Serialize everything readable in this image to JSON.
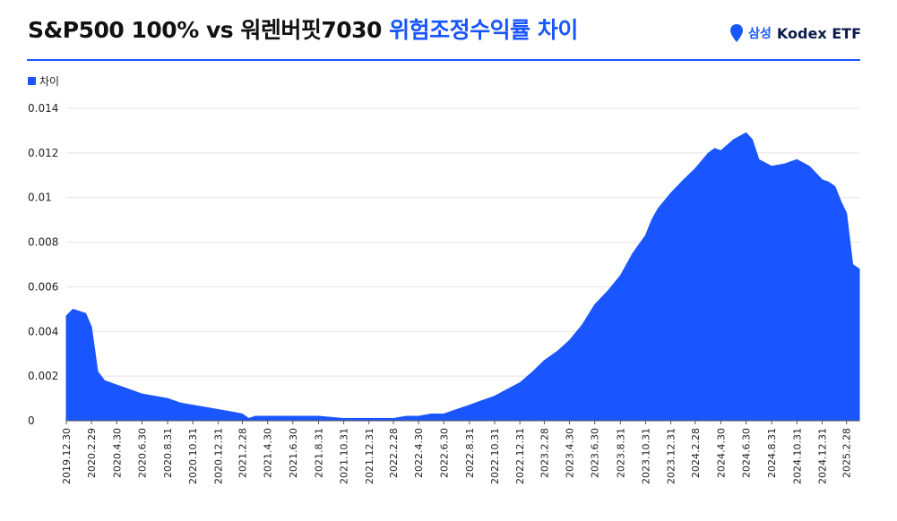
{
  "header": {
    "title_main": "S&P500 100% vs 워렌버핏7030",
    "title_accent": "위험조정수익률 차이",
    "brand_samsung": "삼성",
    "brand_name": "Kodex ETF"
  },
  "colors": {
    "accent": "#1a56ff",
    "grid": "#e3e3e3"
  },
  "icons": {
    "brand_mark": "location-pin-icon"
  },
  "chart_data": {
    "type": "area",
    "legend": [
      "차이"
    ],
    "legend_position": "top-left",
    "grid": true,
    "ylim": [
      0,
      0.014
    ],
    "yticks": [
      "0",
      "0.002",
      "0.004",
      "0.006",
      "0.008",
      "0.01",
      "0.012",
      "0.014"
    ],
    "xticks": [
      "2019.12.30",
      "2020.2.29",
      "2020.4.30",
      "2020.6.30",
      "2020.8.31",
      "2020.10.31",
      "2020.12.31",
      "2021.2.28",
      "2021.4.30",
      "2021.6.30",
      "2021.8.31",
      "2021.10.31",
      "2021.12.31",
      "2022.2.28",
      "2022.4.30",
      "2022.6.30",
      "2022.8.31",
      "2022.10.31",
      "2022.12.31",
      "2023.2.28",
      "2023.4.30",
      "2023.6.30",
      "2023.8.31",
      "2023.10.31",
      "2023.12.31",
      "2024.2.28",
      "2024.4.30",
      "2024.6.30",
      "2024.8.31",
      "2024.10.31",
      "2024.12.31",
      "2025.2.28"
    ],
    "series": [
      {
        "name": "차이",
        "x": [
          "2019.12.30",
          "2020.1.15",
          "2020.1.31",
          "2020.2.15",
          "2020.2.29",
          "2020.3.15",
          "2020.3.31",
          "2020.4.30",
          "2020.5.31",
          "2020.6.30",
          "2020.7.31",
          "2020.8.31",
          "2020.9.30",
          "2020.10.31",
          "2020.11.30",
          "2020.12.31",
          "2021.1.31",
          "2021.2.28",
          "2021.3.15",
          "2021.3.31",
          "2021.4.30",
          "2021.6.30",
          "2021.8.31",
          "2021.10.31",
          "2021.12.31",
          "2022.1.31",
          "2022.2.28",
          "2022.3.31",
          "2022.4.30",
          "2022.5.31",
          "2022.6.30",
          "2022.7.31",
          "2022.8.31",
          "2022.9.30",
          "2022.10.31",
          "2022.11.30",
          "2022.12.31",
          "2023.1.31",
          "2023.2.28",
          "2023.3.31",
          "2023.4.30",
          "2023.5.31",
          "2023.6.30",
          "2023.7.31",
          "2023.8.31",
          "2023.9.30",
          "2023.10.31",
          "2023.11.15",
          "2023.11.30",
          "2023.12.31",
          "2024.1.31",
          "2024.2.28",
          "2024.3.31",
          "2024.4.15",
          "2024.4.30",
          "2024.5.31",
          "2024.6.30",
          "2024.7.15",
          "2024.7.31",
          "2024.8.31",
          "2024.9.30",
          "2024.10.31",
          "2024.11.30",
          "2024.12.31",
          "2025.1.15",
          "2025.1.31",
          "2025.2.15",
          "2025.2.28",
          "2025.3.15",
          "2025.3.31"
        ],
        "y": [
          0.0047,
          0.005,
          0.0049,
          0.0048,
          0.0042,
          0.0022,
          0.0018,
          0.0016,
          0.0014,
          0.0012,
          0.0011,
          0.001,
          0.0008,
          0.0007,
          0.0006,
          0.0005,
          0.0004,
          0.0003,
          0.0001,
          0.0002,
          0.0002,
          0.0002,
          0.0002,
          0.0001,
          0.0001,
          0.0001,
          0.0001,
          0.0002,
          0.0002,
          0.0003,
          0.0003,
          0.0005,
          0.0007,
          0.0009,
          0.0011,
          0.0014,
          0.0017,
          0.0022,
          0.0027,
          0.0031,
          0.0036,
          0.0043,
          0.0052,
          0.0058,
          0.0065,
          0.0075,
          0.0083,
          0.009,
          0.0095,
          0.0102,
          0.0108,
          0.0113,
          0.012,
          0.0122,
          0.0121,
          0.0126,
          0.0129,
          0.0126,
          0.0117,
          0.0114,
          0.0115,
          0.0117,
          0.0114,
          0.0108,
          0.0107,
          0.0105,
          0.0098,
          0.0093,
          0.007,
          0.0068
        ]
      }
    ]
  }
}
